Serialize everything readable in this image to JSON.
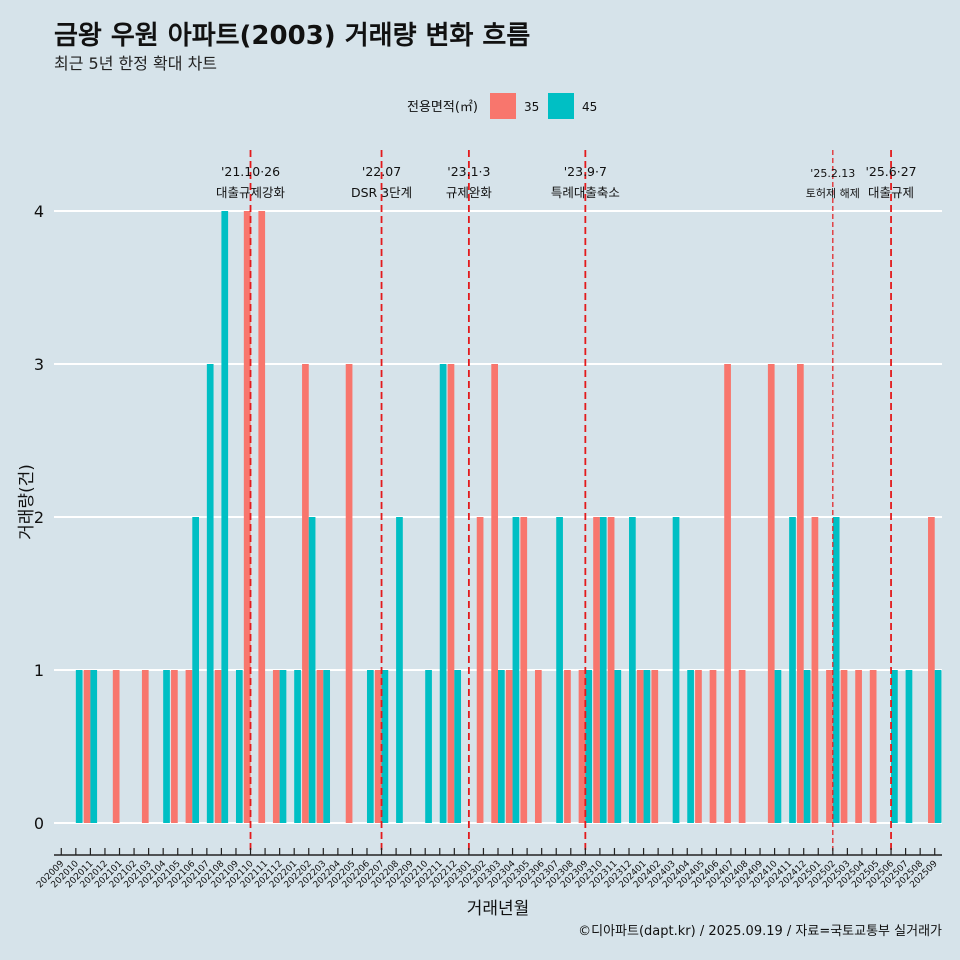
{
  "chart_data": {
    "type": "bar",
    "title": "금왕 우원 아파트(2003) 거래량 변화 흐름",
    "subtitle": "최근 5년 한정 확대 차트",
    "xlabel": "거래년월",
    "ylabel": "거래량(건)",
    "ylim": [
      0,
      4
    ],
    "yticks": [
      "0",
      "1",
      "2",
      "3",
      "4"
    ],
    "grid": "horizontal",
    "legend": {
      "title": "전용면적(㎡)",
      "position": "top",
      "entries": [
        {
          "label": "35",
          "color": "#f8766d"
        },
        {
          "label": "45",
          "color": "#00bfc4"
        }
      ]
    },
    "categories": [
      "202009",
      "202010",
      "202011",
      "202012",
      "202101",
      "202102",
      "202103",
      "202104",
      "202105",
      "202106",
      "202107",
      "202108",
      "202109",
      "202110",
      "202111",
      "202112",
      "202201",
      "202202",
      "202203",
      "202204",
      "202205",
      "202206",
      "202207",
      "202208",
      "202209",
      "202210",
      "202211",
      "202212",
      "202301",
      "202302",
      "202303",
      "202304",
      "202305",
      "202306",
      "202307",
      "202308",
      "202309",
      "202310",
      "202311",
      "202312",
      "202401",
      "202402",
      "202403",
      "202404",
      "202405",
      "202406",
      "202407",
      "202408",
      "202409",
      "202410",
      "202411",
      "202412",
      "202501",
      "202502",
      "202503",
      "202504",
      "202505",
      "202506",
      "202507",
      "202508",
      "202509"
    ],
    "series": [
      {
        "name": "35",
        "color": "#f8766d",
        "values": [
          0,
          0,
          1,
          0,
          1,
          0,
          1,
          0,
          1,
          1,
          0,
          1,
          0,
          4,
          4,
          1,
          0,
          3,
          1,
          0,
          3,
          0,
          1,
          0,
          0,
          0,
          0,
          3,
          0,
          2,
          3,
          1,
          2,
          1,
          0,
          1,
          1,
          2,
          2,
          0,
          1,
          1,
          0,
          0,
          1,
          1,
          3,
          1,
          0,
          3,
          0,
          3,
          2,
          1,
          1,
          1,
          1,
          0,
          0,
          0,
          2
        ]
      },
      {
        "name": "45",
        "color": "#00bfc4",
        "values": [
          0,
          1,
          1,
          0,
          0,
          0,
          0,
          1,
          0,
          2,
          3,
          4,
          1,
          0,
          0,
          1,
          1,
          2,
          1,
          0,
          0,
          1,
          1,
          2,
          0,
          1,
          3,
          1,
          0,
          0,
          1,
          2,
          0,
          0,
          2,
          0,
          1,
          2,
          1,
          2,
          1,
          0,
          2,
          1,
          0,
          0,
          0,
          0,
          0,
          1,
          2,
          1,
          0,
          2,
          0,
          0,
          0,
          1,
          1,
          0,
          1
        ]
      }
    ],
    "annotations": [
      {
        "x": "202110",
        "date": "'21.10·26",
        "text": "대출규제강화",
        "style": "major"
      },
      {
        "x": "202207",
        "date": "'22.07",
        "text": "DSR 3단계",
        "style": "major"
      },
      {
        "x": "202301",
        "date": "'23.1·3",
        "text": "규제완화",
        "style": "major"
      },
      {
        "x": "202309",
        "date": "'23.9·7",
        "text": "특례대출축소",
        "style": "major"
      },
      {
        "x": "202502",
        "date": "'25.2.13",
        "text": "토허제 해제",
        "style": "minor"
      },
      {
        "x": "202506",
        "date": "'25.6·27",
        "text": "대출규제",
        "style": "major"
      }
    ],
    "caption": "©디아파트(dapt.kr) / 2025.09.19 / 자료=국토교통부 실거래가"
  }
}
